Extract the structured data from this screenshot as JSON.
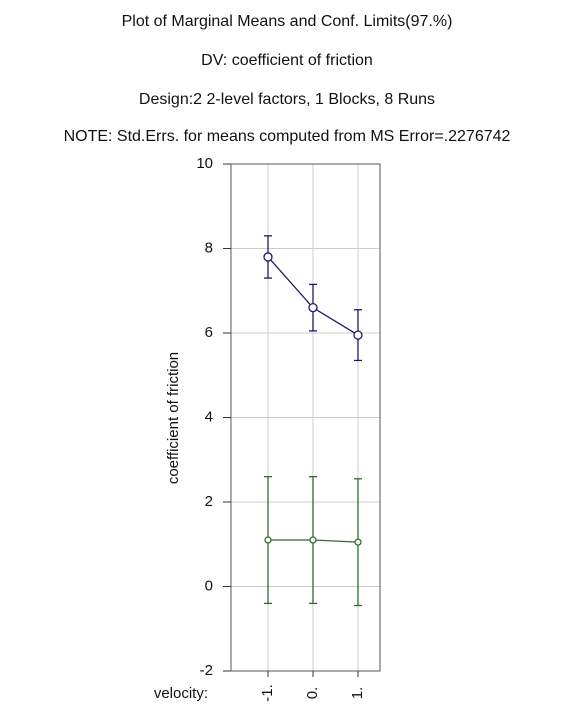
{
  "chart_data": {
    "type": "line",
    "title": "Plot of Marginal Means and Conf. Limits(97.%)",
    "subtitle": "DV: coefficient of friction",
    "design": "Design:2 2-level factors, 1 Blocks, 8 Runs",
    "note": "NOTE: Std.Errs. for means computed from MS Error=.2276742",
    "ylabel": "coefficient of friction",
    "xlabel": "velocity:",
    "categories": [
      "-1.",
      "0.",
      "1."
    ],
    "series": [
      {
        "color": "#1a1a6e",
        "values": [
          7.8,
          6.6,
          5.95
        ],
        "errors": [
          0.5,
          0.55,
          0.6
        ]
      },
      {
        "color": "#2e6b2e",
        "values": [
          1.1,
          1.1,
          1.05
        ],
        "errors": [
          1.5,
          1.5,
          1.5
        ]
      }
    ],
    "ylim": [
      -2,
      10
    ],
    "yticks": [
      -2,
      0,
      2,
      4,
      6,
      8,
      10
    ],
    "grid": true
  }
}
